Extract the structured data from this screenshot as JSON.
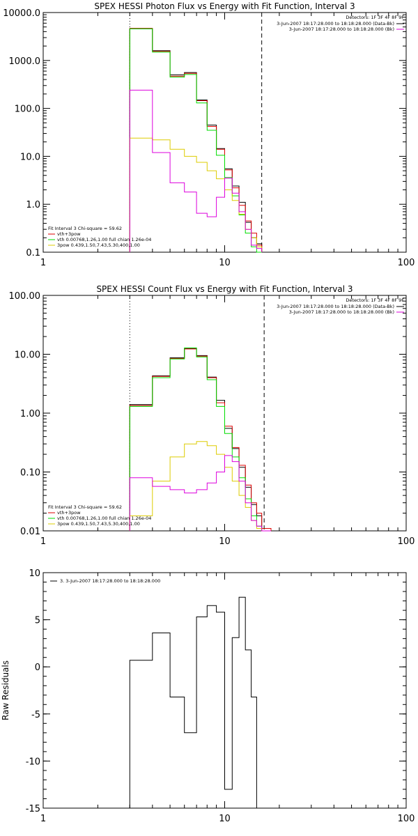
{
  "chart_data": [
    {
      "type": "line",
      "id": "photon",
      "title": "SPEX HESSI Photon Flux vs Energy with Fit Function, Interval 3",
      "xlabel": "",
      "ylabel": "",
      "xscale": "log",
      "yscale": "log",
      "xlim": [
        1,
        100
      ],
      "ylim": [
        0.1,
        10000
      ],
      "xticks": [
        1,
        10,
        100
      ],
      "xtick_labels": [
        "1",
        "10",
        "100"
      ],
      "yticks": [
        0.1,
        1,
        10,
        100,
        1000,
        10000
      ],
      "ytick_labels": [
        "0.1",
        "1.0",
        "10.0",
        "100.0",
        "1000.0",
        "10000.0"
      ],
      "vlines": [
        {
          "x": 3,
          "style": "dotted"
        },
        {
          "x": 16,
          "style": "dashed"
        }
      ],
      "bin_edges": [
        3,
        4,
        5,
        6,
        7,
        8,
        9,
        10,
        11,
        12,
        13,
        14,
        15,
        16
      ],
      "series": [
        {
          "color": "#000000",
          "values": [
            4600,
            1600,
            500,
            560,
            150,
            45,
            14.5,
            5.5,
            2.4,
            1.1,
            0.42,
            0.2,
            0.15
          ]
        },
        {
          "name": "vth+3pow",
          "color": "#dd0000",
          "values": [
            4700,
            1550,
            470,
            540,
            145,
            42,
            14,
            5.2,
            2.2,
            0.95,
            0.45,
            0.25,
            0.14
          ]
        },
        {
          "name": "vth 0.00768,1.26,1.00  full chian 1.26e-04",
          "color": "#00dd00",
          "values": [
            4600,
            1500,
            450,
            510,
            130,
            35,
            10.5,
            3.6,
            1.5,
            0.6,
            0.25,
            0.13,
            0.1
          ]
        },
        {
          "name": "3pow 0.439,1.50,7.43,5.30,400,1.00",
          "color": "#ddcc00",
          "values": [
            24,
            22,
            14,
            10,
            7.5,
            5,
            3.4,
            2.0,
            1.2,
            0.62,
            0.3,
            0.2,
            0.13
          ]
        },
        {
          "color": "#dd00dd",
          "values": [
            240,
            12,
            2.8,
            1.8,
            0.65,
            0.55,
            1.4,
            3.5,
            1.7,
            0.7,
            0.3,
            0.14,
            0.12
          ]
        }
      ],
      "legend_top": {
        "header": "Detectors: 1F 3F 4F 8F 9F",
        "entries": [
          {
            "text": "3-Jun-2007 18:17:28.000 to 18:18:28.000 (Data-Bk)",
            "color": "#000000"
          },
          {
            "text": "3-Jun-2007 18:17:28.000 to 18:18:28.000 (Bk)",
            "color": "#dd00dd"
          }
        ]
      },
      "legend_bottom": {
        "header": "Fit Interval 3   Chi-square = 59.62",
        "entries": [
          {
            "text": "vth+3pow",
            "color": "#dd0000"
          },
          {
            "text": "vth 0.00768,1.26,1.00  full chian 1.26e-04",
            "color": "#00dd00"
          },
          {
            "text": "3pow 0.439,1.50,7.43,5.30,400,1.00",
            "color": "#ddcc00"
          }
        ]
      }
    },
    {
      "type": "line",
      "id": "count",
      "title": "SPEX HESSI Count Flux vs Energy with Fit Function, Interval 3",
      "xlabel": "",
      "ylabel": "",
      "xscale": "log",
      "yscale": "log",
      "xlim": [
        1,
        100
      ],
      "ylim": [
        0.01,
        100
      ],
      "xticks": [
        1,
        10,
        100
      ],
      "xtick_labels": [
        "1",
        "10",
        "100"
      ],
      "yticks": [
        0.01,
        0.1,
        1,
        10,
        100
      ],
      "ytick_labels": [
        "0.01",
        "0.10",
        "1.00",
        "10.00",
        "100.00"
      ],
      "vlines": [
        {
          "x": 3,
          "style": "dotted"
        },
        {
          "x": 16.5,
          "style": "dashed"
        }
      ],
      "bin_edges": [
        3,
        4,
        5,
        6,
        7,
        8,
        9,
        10,
        11,
        12,
        13,
        14,
        15,
        16,
        18
      ],
      "series": [
        {
          "color": "#000000",
          "values": [
            1.4,
            4.3,
            8.7,
            12.5,
            9.5,
            4.1,
            1.65,
            0.55,
            0.25,
            0.12,
            0.055,
            0.028,
            0.018,
            0.011
          ]
        },
        {
          "name": "vth+3pow",
          "color": "#dd0000",
          "values": [
            1.35,
            4.2,
            8.5,
            12.3,
            9.3,
            4.0,
            1.5,
            0.6,
            0.26,
            0.13,
            0.06,
            0.03,
            0.02,
            0.011
          ]
        },
        {
          "name": "vth 0.00768,1.26,1.00  full chian 1.26e-04",
          "color": "#00dd00",
          "values": [
            1.3,
            4.0,
            8.3,
            12.8,
            9.0,
            3.7,
            1.3,
            0.45,
            0.18,
            0.08,
            0.035,
            0.018,
            0.012,
            0.01
          ]
        },
        {
          "name": "3pow 0.439,1.50,7.43,5.30,400,1.00",
          "color": "#ddcc00",
          "values": [
            0.018,
            0.07,
            0.18,
            0.3,
            0.33,
            0.28,
            0.2,
            0.12,
            0.07,
            0.04,
            0.025,
            0.015,
            0.011,
            0.01
          ]
        },
        {
          "color": "#dd00dd",
          "values": [
            0.08,
            0.057,
            0.05,
            0.044,
            0.05,
            0.065,
            0.1,
            0.19,
            0.15,
            0.07,
            0.03,
            0.015,
            0.012,
            0.01
          ]
        }
      ],
      "legend_top": {
        "header": "Detectors: 1F 3F 4F 8F 9F",
        "entries": [
          {
            "text": "3-Jun-2007 18:17:28.000 to 18:18:28.000 (Data-Bk)",
            "color": "#000000"
          },
          {
            "text": "3-Jun-2007 18:17:28.000 to 18:18:28.000 (Bk)",
            "color": "#dd00dd"
          }
        ]
      },
      "legend_bottom": {
        "header": "Fit Interval 3   Chi-square = 59.62",
        "entries": [
          {
            "text": "vth+3pow",
            "color": "#dd0000"
          },
          {
            "text": "vth 0.00768,1.26,1.00  full chian 1.26e-04",
            "color": "#00dd00"
          },
          {
            "text": "3pow 0.439,1.50,7.43,5.30,400,1.00",
            "color": "#ddcc00"
          }
        ]
      }
    },
    {
      "type": "line",
      "id": "residuals",
      "title": "",
      "xlabel": "",
      "ylabel": "Raw Residuals",
      "xscale": "log",
      "yscale": "linear",
      "xlim": [
        1,
        100
      ],
      "ylim": [
        -15,
        10
      ],
      "xticks": [
        1,
        10,
        100
      ],
      "xtick_labels": [
        "1",
        "10",
        "100"
      ],
      "yticks": [
        -15,
        -10,
        -5,
        0,
        5,
        10
      ],
      "ytick_labels": [
        "-15",
        "-10",
        "-5",
        "0",
        "5",
        "10"
      ],
      "bin_edges": [
        3,
        4,
        5,
        6,
        7,
        8,
        9,
        10,
        11,
        12,
        13,
        14,
        15,
        16
      ],
      "series": [
        {
          "name": "3.  3-Jun-2007 18:17:28.000 to 18:18:28.000",
          "color": "#000000",
          "values": [
            0.7,
            3.6,
            -3.2,
            -7.0,
            5.3,
            6.5,
            5.8,
            -13.0,
            3.1,
            7.4,
            1.8,
            -3.2,
            -15
          ]
        }
      ],
      "legend_top": {
        "header": "",
        "entries": [
          {
            "text": "3.  3-Jun-2007 18:17:28.000 to 18:18:28.000",
            "color": "#000000"
          }
        ]
      }
    }
  ]
}
